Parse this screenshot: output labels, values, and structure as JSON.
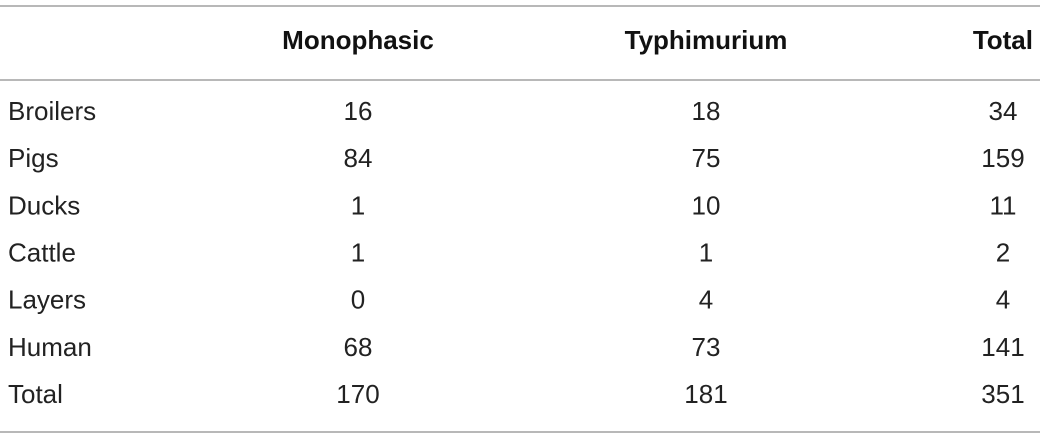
{
  "table": {
    "header": [
      "Monophasic",
      "Typhimurium",
      "Total"
    ],
    "rows": [
      [
        "Broilers",
        16,
        18,
        34
      ],
      [
        "Pigs",
        84,
        75,
        159
      ],
      [
        "Ducks",
        1,
        10,
        11
      ],
      [
        "Cattle",
        1,
        1,
        2
      ],
      [
        "Layers",
        0,
        4,
        4
      ],
      [
        "Human",
        68,
        73,
        141
      ],
      [
        "Total",
        170,
        181,
        351
      ]
    ]
  }
}
